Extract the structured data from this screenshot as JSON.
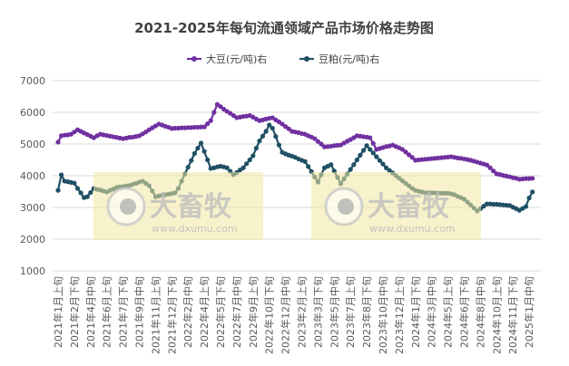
{
  "chart_data": {
    "type": "line",
    "title": "2021-2025年每旬流通领域产品市场价格走势图",
    "xlabel": "",
    "ylabel": "",
    "ylim": [
      1000,
      7000
    ],
    "y_ticks": [
      "1000",
      "2000",
      "3000",
      "4000",
      "5000",
      "6000",
      "7000"
    ],
    "grid": true,
    "legend_position": "top",
    "x_tick_every": 5,
    "x_tick_labels": [
      "2021年1月上旬",
      "2021年2月下旬",
      "2021年4月中旬",
      "2021年6月上旬",
      "2021年7月下旬",
      "2021年9月中旬",
      "2021年11月上旬",
      "2021年12月下旬",
      "2022年2月中旬",
      "2022年4月上旬",
      "2022年5月下旬",
      "2022年7月中旬",
      "2022年9月上旬",
      "2022年10月下旬",
      "2022年12月中旬",
      "2023年2月上旬",
      "2023年3月下旬",
      "2023年5月中旬",
      "2023年7月上旬",
      "2023年8月下旬",
      "2023年10月中旬",
      "2023年12月上旬",
      "2024年1月下旬",
      "2024年3月中旬",
      "2024年5月上旬",
      "2024年6月下旬",
      "2024年8月中旬",
      "2024年10月上旬",
      "2024年11月下旬",
      "2025年1月中旬"
    ],
    "series": [
      {
        "name": "大豆(元/吨)右",
        "color": "#7030a0",
        "values": [
          5060,
          5260,
          5280,
          5290,
          5310,
          5380,
          5450,
          5400,
          5350,
          5300,
          5250,
          5200,
          5260,
          5310,
          5290,
          5270,
          5250,
          5230,
          5210,
          5190,
          5170,
          5190,
          5210,
          5220,
          5240,
          5260,
          5320,
          5380,
          5450,
          5510,
          5570,
          5630,
          5600,
          5560,
          5530,
          5490,
          5500,
          5500,
          5510,
          5510,
          5520,
          5520,
          5530,
          5530,
          5540,
          5540,
          5640,
          5740,
          6000,
          6250,
          6180,
          6100,
          6030,
          5970,
          5900,
          5830,
          5850,
          5870,
          5880,
          5900,
          5850,
          5790,
          5740,
          5760,
          5790,
          5810,
          5830,
          5760,
          5700,
          5630,
          5550,
          5480,
          5400,
          5380,
          5360,
          5330,
          5310,
          5260,
          5220,
          5170,
          5080,
          5000,
          4910,
          4920,
          4930,
          4950,
          4960,
          4970,
          5030,
          5090,
          5140,
          5200,
          5260,
          5250,
          5230,
          5220,
          5200,
          5020,
          4830,
          4860,
          4890,
          4920,
          4940,
          4970,
          4920,
          4880,
          4830,
          4750,
          4660,
          4580,
          4490,
          4500,
          4510,
          4520,
          4530,
          4540,
          4550,
          4560,
          4570,
          4580,
          4590,
          4600,
          4580,
          4560,
          4550,
          4530,
          4510,
          4490,
          4460,
          4430,
          4400,
          4370,
          4340,
          4250,
          4150,
          4060,
          4040,
          4010,
          3990,
          3970,
          3940,
          3920,
          3890,
          3900,
          3910,
          3910,
          3920
        ]
      },
      {
        "name": "豆粕(元/吨)右",
        "color": "#1f5064",
        "values": [
          3540,
          4030,
          3830,
          3810,
          3790,
          3770,
          3600,
          3460,
          3310,
          3340,
          3470,
          3600,
          3570,
          3550,
          3520,
          3490,
          3540,
          3580,
          3630,
          3650,
          3660,
          3680,
          3690,
          3730,
          3760,
          3800,
          3830,
          3760,
          3690,
          3520,
          3340,
          3360,
          3380,
          3400,
          3420,
          3440,
          3460,
          3600,
          3830,
          4050,
          4270,
          4480,
          4700,
          4870,
          5030,
          4770,
          4500,
          4230,
          4250,
          4280,
          4300,
          4280,
          4250,
          4140,
          4030,
          4100,
          4180,
          4250,
          4380,
          4500,
          4630,
          4870,
          5100,
          5250,
          5400,
          5600,
          5500,
          5240,
          4970,
          4740,
          4690,
          4650,
          4620,
          4580,
          4530,
          4490,
          4450,
          4290,
          4130,
          3960,
          3800,
          4030,
          4250,
          4300,
          4350,
          4150,
          3950,
          3750,
          3900,
          4050,
          4200,
          4350,
          4500,
          4650,
          4800,
          4950,
          4830,
          4720,
          4600,
          4480,
          4370,
          4250,
          4170,
          4090,
          4000,
          3920,
          3840,
          3760,
          3680,
          3600,
          3540,
          3510,
          3490,
          3460,
          3460,
          3460,
          3460,
          3450,
          3450,
          3450,
          3450,
          3430,
          3400,
          3350,
          3310,
          3260,
          3170,
          3080,
          2980,
          2890,
          2960,
          3040,
          3110,
          3110,
          3100,
          3100,
          3090,
          3080,
          3070,
          3060,
          3010,
          2960,
          2910,
          2970,
          3030,
          3300,
          3490
        ]
      }
    ]
  },
  "watermark": {
    "logo": "大畜牧",
    "url": "www.dxumu.com"
  }
}
